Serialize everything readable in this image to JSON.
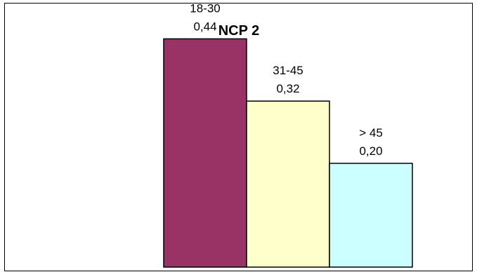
{
  "chart_data": {
    "type": "bar",
    "title": "NCP 2",
    "xlabel": "",
    "ylabel": "",
    "categories": [
      "18-30",
      "31-45",
      "> 45"
    ],
    "values": [
      0.44,
      0.32,
      0.2
    ],
    "value_labels": [
      "0,44",
      "0,32",
      "0,20"
    ],
    "colors": [
      "#993366",
      "#FFFFCC",
      "#CCFFFF"
    ],
    "ylim": [
      0,
      0.5
    ],
    "grid": false,
    "legend": "none"
  }
}
